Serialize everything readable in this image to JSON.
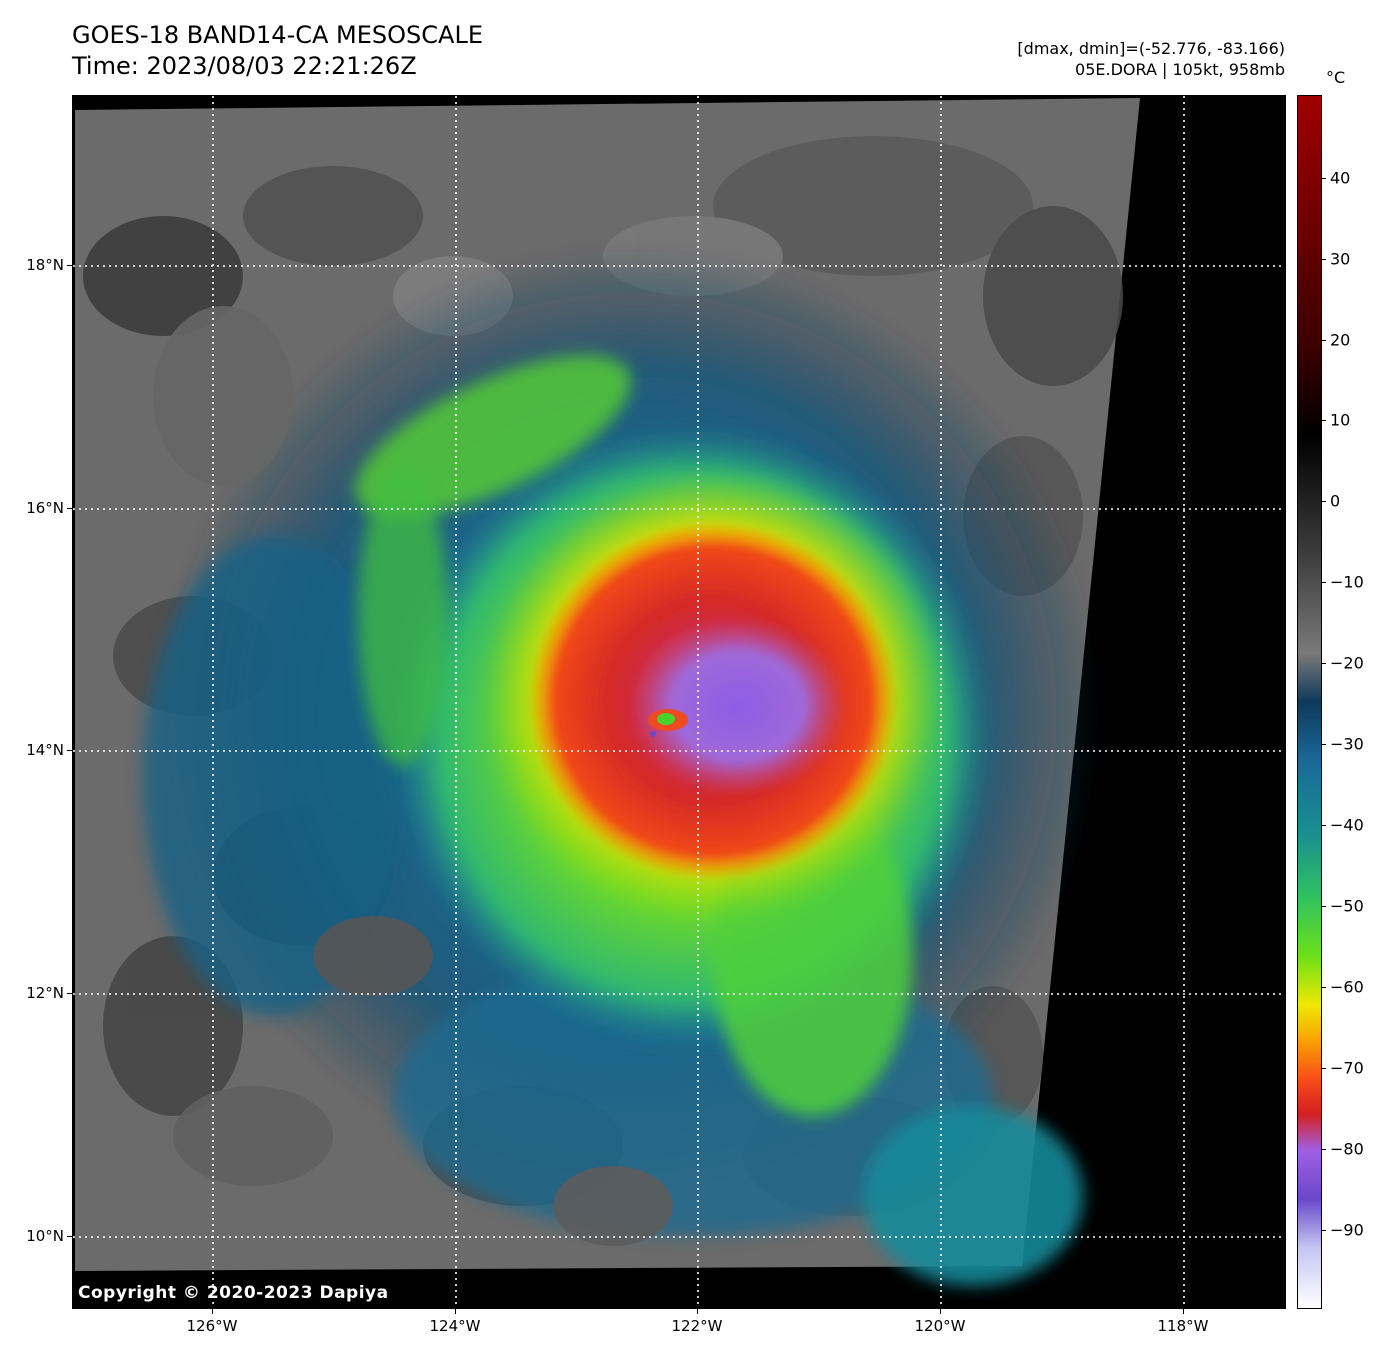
{
  "header": {
    "title_line1": "GOES-18 BAND14-CA MESOSCALE",
    "title_line2": "Time: 2023/08/03 22:21:26Z",
    "range_text": "[dmax, dmin]=(-52.776, -83.166)",
    "storm_text": "05E.DORA | 105kt, 958mb"
  },
  "map": {
    "copyright": "Copyright © 2020-2023 Dapiya",
    "x_ticks": [
      "126°W",
      "124°W",
      "122°W",
      "120°W",
      "118°W"
    ],
    "y_ticks": [
      "18°N",
      "16°N",
      "14°N",
      "12°N",
      "10°N"
    ],
    "grid": "dotted white"
  },
  "colorbar": {
    "unit": "°C",
    "labels": [
      "40",
      "30",
      "20",
      "10",
      "0",
      "−10",
      "−20",
      "−30",
      "−40",
      "−50",
      "−60",
      "−70",
      "−80",
      "−90"
    ]
  },
  "colors": {
    "eye": "#4ad32a",
    "eyewall": "#d42020",
    "cold_core": "#a260e4",
    "outer_band": "#6ce01a",
    "cirrus": "#1a6a9a",
    "clear": "#6a6a6a",
    "space": "#000000"
  }
}
